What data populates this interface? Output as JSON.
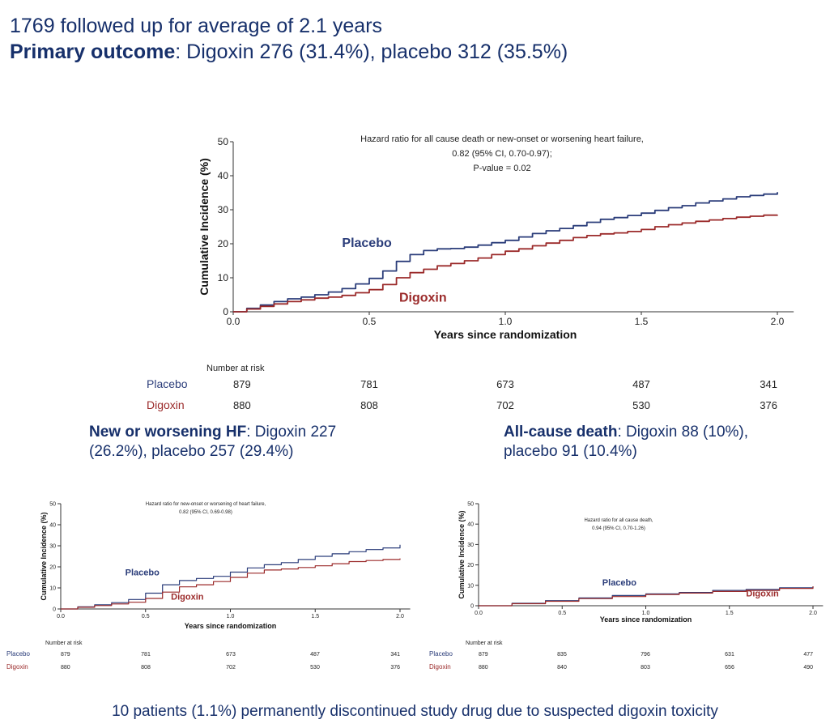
{
  "header": {
    "line1": "1769 followed up for average of 2.1 years",
    "primary_label": "Primary outcome",
    "primary_rest": ": Digoxin 276 (31.4%), placebo 312 (35.5%)"
  },
  "subheads": {
    "hf_label": "New or worsening HF",
    "hf_rest1": ": Digoxin 227",
    "hf_rest2": "(26.2%), placebo 257 (29.4%)",
    "death_label": "All-cause death",
    "death_rest1": ": Digoxin 88 (10%),",
    "death_rest2": "placebo 91 (10.4%)"
  },
  "footer": "10 patients (1.1%) permanently discontinued study drug due to suspected digoxin toxicity",
  "colors": {
    "placebo": "#2b3d7a",
    "digoxin": "#9b2a2a",
    "text": "#17306b",
    "axis": "#333333"
  },
  "chart_data": [
    {
      "id": "main",
      "type": "line",
      "title": "Hazard ratio for all cause death or new-onset or worsening heart failure,",
      "annotation": [
        "0.82 (95% CI, 0.70-0.97);",
        "P-value = 0.02"
      ],
      "xlabel": "Years since randomization",
      "ylabel": "Cumulative Incidence (%)",
      "xlim": [
        0,
        2
      ],
      "ylim": [
        0,
        50
      ],
      "xticks": [
        "0.0",
        "0.5",
        "1.0",
        "1.5",
        "2.0"
      ],
      "yticks": [
        "0",
        "10",
        "20",
        "30",
        "40",
        "50"
      ],
      "series": [
        {
          "name": "Placebo",
          "label_at": [
            0.4,
            19
          ],
          "x": [
            0,
            0.05,
            0.1,
            0.15,
            0.2,
            0.25,
            0.3,
            0.35,
            0.4,
            0.45,
            0.5,
            0.55,
            0.6,
            0.65,
            0.7,
            0.75,
            0.8,
            0.85,
            0.9,
            0.95,
            1.0,
            1.05,
            1.1,
            1.15,
            1.2,
            1.25,
            1.3,
            1.35,
            1.4,
            1.45,
            1.5,
            1.55,
            1.6,
            1.65,
            1.7,
            1.75,
            1.8,
            1.85,
            1.9,
            1.95,
            2.0
          ],
          "y": [
            0,
            1,
            2,
            3,
            3.8,
            4.3,
            5,
            5.8,
            6.8,
            8.2,
            9.8,
            12,
            14.8,
            16.8,
            18,
            18.5,
            18.6,
            19,
            19.6,
            20.3,
            21,
            22,
            23,
            23.8,
            24.5,
            25.3,
            26.3,
            27.2,
            27.7,
            28.3,
            29,
            29.8,
            30.6,
            31.2,
            32,
            32.6,
            33.2,
            33.8,
            34.2,
            34.6,
            35.2
          ]
        },
        {
          "name": "Digoxin",
          "label_at": [
            0.61,
            3
          ],
          "x": [
            0,
            0.05,
            0.1,
            0.15,
            0.2,
            0.25,
            0.3,
            0.35,
            0.4,
            0.45,
            0.5,
            0.55,
            0.6,
            0.65,
            0.7,
            0.75,
            0.8,
            0.85,
            0.9,
            0.95,
            1.0,
            1.05,
            1.1,
            1.15,
            1.2,
            1.25,
            1.3,
            1.35,
            1.4,
            1.45,
            1.5,
            1.55,
            1.6,
            1.65,
            1.7,
            1.75,
            1.8,
            1.85,
            1.9,
            1.95,
            2.0
          ],
          "y": [
            0,
            0.8,
            1.6,
            2.3,
            3,
            3.5,
            4,
            4.3,
            4.8,
            5.6,
            6.5,
            8,
            10,
            11.5,
            12.5,
            13.5,
            14.2,
            15,
            15.8,
            16.8,
            17.8,
            18.5,
            19.4,
            20.2,
            21,
            21.8,
            22.4,
            22.9,
            23.2,
            23.6,
            24.2,
            25,
            25.6,
            26.1,
            26.6,
            27,
            27.4,
            27.8,
            28.1,
            28.4,
            28.5
          ]
        }
      ],
      "risk_table": {
        "header": "Number at risk",
        "rows": [
          {
            "name": "Placebo",
            "values": [
              "879",
              "781",
              "673",
              "487",
              "341"
            ]
          },
          {
            "name": "Digoxin",
            "values": [
              "880",
              "808",
              "702",
              "530",
              "376"
            ]
          }
        ]
      }
    },
    {
      "id": "hf",
      "type": "line",
      "title": "Hazard ratio for new-onset or worsening of heart failure,",
      "annotation": [
        "0.82 (95% CI, 0.69-0.98)"
      ],
      "xlabel": "Years since randomization",
      "ylabel": "Cumulative Incidence (%)",
      "xlim": [
        0,
        2
      ],
      "ylim": [
        0,
        50
      ],
      "xticks": [
        "0.0",
        "0.5",
        "1.0",
        "1.5",
        "2.0"
      ],
      "yticks": [
        "0",
        "10",
        "20",
        "30",
        "40",
        "50"
      ],
      "series": [
        {
          "name": "Placebo",
          "label_at": [
            0.38,
            16
          ],
          "x": [
            0,
            0.1,
            0.2,
            0.3,
            0.4,
            0.5,
            0.6,
            0.7,
            0.8,
            0.9,
            1.0,
            1.1,
            1.2,
            1.3,
            1.4,
            1.5,
            1.6,
            1.7,
            1.8,
            1.9,
            2.0
          ],
          "y": [
            0,
            1,
            2,
            3,
            4.5,
            7.5,
            11.5,
            13.5,
            14.5,
            15.5,
            17.5,
            19.5,
            21,
            22,
            23.5,
            25,
            26.2,
            27.2,
            28.2,
            29,
            30.5
          ]
        },
        {
          "name": "Digoxin",
          "label_at": [
            0.65,
            4.5
          ],
          "x": [
            0,
            0.1,
            0.2,
            0.3,
            0.4,
            0.5,
            0.6,
            0.7,
            0.8,
            0.9,
            1.0,
            1.1,
            1.2,
            1.3,
            1.4,
            1.5,
            1.6,
            1.7,
            1.8,
            1.9,
            2.0
          ],
          "y": [
            0,
            0.8,
            1.6,
            2.4,
            3.2,
            5,
            8,
            10.5,
            11.5,
            13,
            15,
            17,
            18.5,
            19,
            19.7,
            20.5,
            21.5,
            22.5,
            23,
            23.5,
            24
          ]
        }
      ],
      "risk_table": {
        "header": "Number at risk",
        "rows": [
          {
            "name": "Placebo",
            "values": [
              "879",
              "781",
              "673",
              "487",
              "341"
            ]
          },
          {
            "name": "Digoxin",
            "values": [
              "880",
              "808",
              "702",
              "530",
              "376"
            ]
          }
        ]
      }
    },
    {
      "id": "death",
      "type": "line",
      "title": "Hazard ratio for all cause death,",
      "annotation": [
        "0.94 (95% CI, 0.70-1.26)"
      ],
      "xlabel": "Years since randomization",
      "ylabel": "Cumulative Incidence (%)",
      "xlim": [
        0,
        2
      ],
      "ylim": [
        0,
        50
      ],
      "xticks": [
        "0.0",
        "0.5",
        "1.0",
        "1.5",
        "2.0"
      ],
      "yticks": [
        "0",
        "10",
        "20",
        "30",
        "40",
        "50"
      ],
      "series": [
        {
          "name": "Placebo",
          "label_at": [
            0.74,
            10
          ],
          "x": [
            0,
            0.2,
            0.4,
            0.6,
            0.8,
            1.0,
            1.2,
            1.4,
            1.6,
            1.8,
            2.0
          ],
          "y": [
            0,
            1.2,
            2.5,
            3.8,
            5,
            5.8,
            6.5,
            7.5,
            8,
            8.8,
            9.5
          ]
        },
        {
          "name": "Digoxin",
          "label_at": [
            1.6,
            4.5
          ],
          "x": [
            0,
            0.2,
            0.4,
            0.6,
            0.8,
            1.0,
            1.2,
            1.4,
            1.6,
            1.8,
            2.0
          ],
          "y": [
            0,
            1,
            2.2,
            3.5,
            4.5,
            5.5,
            6.2,
            7,
            7.5,
            8.5,
            9.5
          ]
        }
      ],
      "risk_table": {
        "header": "Number at risk",
        "rows": [
          {
            "name": "Placebo",
            "values": [
              "879",
              "835",
              "796",
              "631",
              "477"
            ]
          },
          {
            "name": "Digoxin",
            "values": [
              "880",
              "840",
              "803",
              "656",
              "490"
            ]
          }
        ]
      }
    }
  ]
}
